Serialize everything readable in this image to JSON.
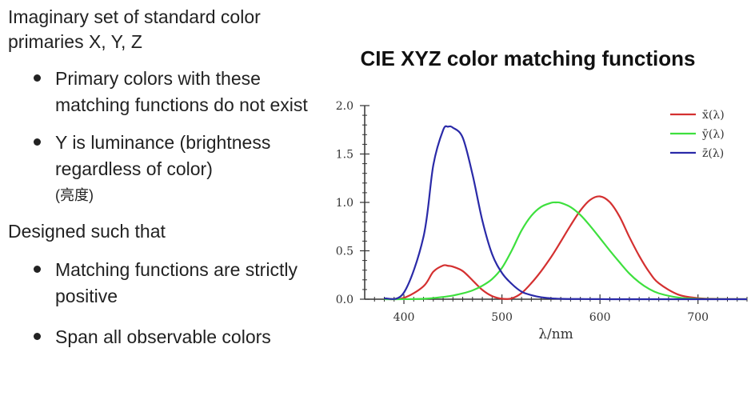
{
  "text": {
    "intro": "Imaginary set of standard color primaries X, Y, Z",
    "bullets1": [
      "Primary colors with these matching functions do not exist",
      "Y is luminance (brightness regardless of color)"
    ],
    "bullet2_note": "(亮度)",
    "designed": "Designed such that",
    "bullets2": [
      "Matching functions are strictly positive",
      "Span all observable colors"
    ]
  },
  "chart_data": {
    "type": "line",
    "title": "CIE XYZ color matching functions",
    "xlabel": "λ/nm",
    "ylabel": "",
    "xlim": [
      360,
      750
    ],
    "ylim": [
      0,
      2
    ],
    "xticks": [
      "400",
      "500",
      "600",
      "700"
    ],
    "yticks": [
      "0.0",
      "0.5",
      "1.0",
      "1.5",
      "2.0"
    ],
    "legend": "top-right",
    "x": [
      380,
      400,
      420,
      430,
      440,
      445,
      450,
      460,
      470,
      480,
      490,
      500,
      510,
      520,
      530,
      540,
      550,
      555,
      560,
      570,
      580,
      590,
      600,
      610,
      620,
      630,
      640,
      650,
      660,
      680,
      700,
      720,
      750
    ],
    "series": [
      {
        "name": "x̄(λ)",
        "color": "#d43030",
        "values": [
          0.001,
          0.014,
          0.134,
          0.284,
          0.348,
          0.345,
          0.336,
          0.291,
          0.195,
          0.096,
          0.032,
          0.005,
          0.009,
          0.063,
          0.166,
          0.29,
          0.433,
          0.512,
          0.595,
          0.762,
          0.916,
          1.026,
          1.062,
          1.003,
          0.854,
          0.642,
          0.448,
          0.284,
          0.165,
          0.047,
          0.011,
          0.003,
          0.0
        ]
      },
      {
        "name": "ȳ(λ)",
        "color": "#3ee03e",
        "values": [
          0.0,
          0.0004,
          0.004,
          0.012,
          0.023,
          0.03,
          0.038,
          0.06,
          0.091,
          0.139,
          0.208,
          0.323,
          0.503,
          0.71,
          0.862,
          0.954,
          0.995,
          1.0,
          0.995,
          0.952,
          0.87,
          0.757,
          0.631,
          0.503,
          0.381,
          0.265,
          0.175,
          0.107,
          0.061,
          0.017,
          0.004,
          0.001,
          0.0
        ]
      },
      {
        "name": "z̄(λ)",
        "color": "#2a2aa8",
        "values": [
          0.007,
          0.068,
          0.646,
          1.386,
          1.747,
          1.782,
          1.772,
          1.669,
          1.288,
          0.813,
          0.465,
          0.272,
          0.158,
          0.078,
          0.042,
          0.02,
          0.009,
          0.006,
          0.004,
          0.002,
          0.002,
          0.001,
          0.001,
          0.0,
          0.0,
          0.0,
          0.0,
          0.0,
          0.0,
          0.0,
          0.0,
          0.0,
          0.0
        ]
      }
    ]
  }
}
